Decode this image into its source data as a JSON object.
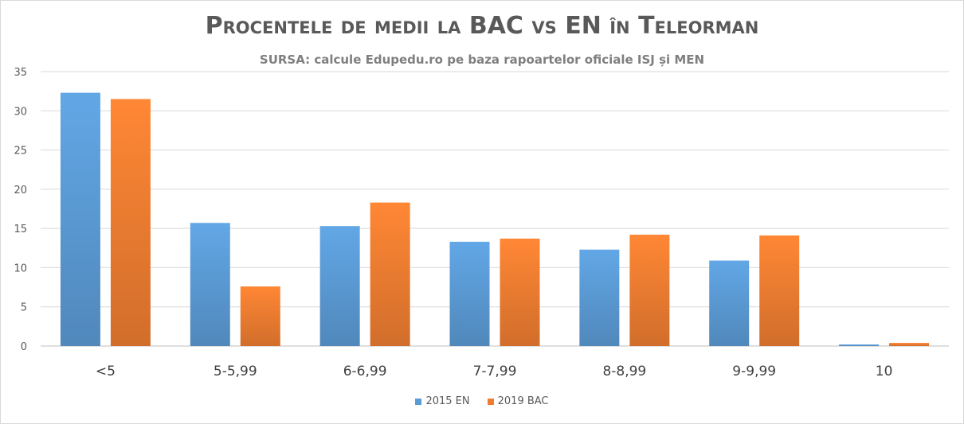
{
  "chart_data": {
    "type": "bar",
    "title": "Procentele de medii la BAC vs EN în Teleorman",
    "subtitle": "SURSA: calcule Edupedu.ro pe baza rapoartelor oficiale ISJ și MEN",
    "categories": [
      "<5",
      "5-5,99",
      "6-6,99",
      "7-7,99",
      "8-8,99",
      "9-9,99",
      "10"
    ],
    "series": [
      {
        "name": "2015 EN",
        "color": "#5b9bd5",
        "values": [
          32.3,
          15.7,
          15.3,
          13.3,
          12.3,
          10.9,
          0.2
        ]
      },
      {
        "name": "2019 BAC",
        "color": "#ed7d31",
        "values": [
          31.5,
          7.6,
          18.3,
          13.7,
          14.2,
          14.1,
          0.4
        ]
      }
    ],
    "yticks": [
      "0",
      "5",
      "10",
      "15",
      "20",
      "25",
      "30",
      "35"
    ],
    "ylim": [
      0,
      35
    ],
    "grid": true,
    "legend_position": "bottom"
  }
}
